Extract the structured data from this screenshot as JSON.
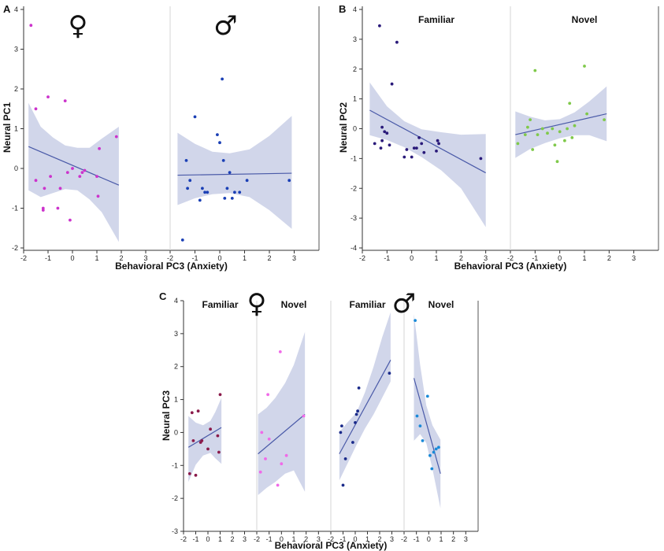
{
  "chart_data": [
    {
      "id": "A",
      "type": "scatter",
      "panel_letter": "A",
      "xlabel": "Behavioral PC3 (Anxiety)",
      "ylabel": "Neural PC1",
      "ylim": [
        -2,
        4
      ],
      "yticks": [
        "-2",
        "-1",
        "0",
        "1",
        "2",
        "3",
        "4"
      ],
      "facets": [
        {
          "label": "♀",
          "symbol": true,
          "xlim": [
            -2,
            4
          ],
          "xticks": [
            "-2",
            "-1",
            "0",
            "1",
            "2",
            "3"
          ],
          "color": "#cc33cc",
          "points": [
            [
              -1.7,
              3.6
            ],
            [
              -1.5,
              1.5
            ],
            [
              -1.5,
              -0.3
            ],
            [
              -1.2,
              -1.05
            ],
            [
              -1.2,
              -1.0
            ],
            [
              -1.15,
              -0.5
            ],
            [
              -1.0,
              1.8
            ],
            [
              -0.9,
              -0.2
            ],
            [
              -0.6,
              -1.0
            ],
            [
              -0.5,
              -0.5
            ],
            [
              -0.3,
              1.7
            ],
            [
              -0.2,
              -0.1
            ],
            [
              -0.1,
              -1.3
            ],
            [
              0.0,
              0.0
            ],
            [
              0.3,
              -0.2
            ],
            [
              0.4,
              -0.1
            ],
            [
              0.5,
              -0.05
            ],
            [
              1.0,
              -0.2
            ],
            [
              1.05,
              -0.7
            ],
            [
              1.1,
              0.5
            ],
            [
              1.8,
              0.8
            ]
          ],
          "fit": {
            "x": [
              -1.8,
              1.9
            ],
            "y": [
              0.55,
              -0.42
            ]
          },
          "band": {
            "x": [
              -1.8,
              -1.3,
              -0.8,
              -0.3,
              0.2,
              0.7,
              1.2,
              1.9
            ],
            "upper": [
              1.65,
              1.05,
              0.78,
              0.58,
              0.52,
              0.52,
              0.75,
              1.05
            ],
            "lower": [
              -0.55,
              -0.72,
              -0.62,
              -0.52,
              -0.55,
              -0.78,
              -1.1,
              -1.85
            ]
          }
        },
        {
          "label": "♂",
          "symbol": true,
          "xlim": [
            -2,
            4
          ],
          "xticks": [
            "-2",
            "-1",
            "0",
            "1",
            "2",
            "3"
          ],
          "color": "#1a3fb5",
          "points": [
            [
              -1.5,
              -1.8
            ],
            [
              -1.35,
              0.2
            ],
            [
              -1.3,
              -0.5
            ],
            [
              -1.2,
              -0.3
            ],
            [
              -1.0,
              1.3
            ],
            [
              -0.8,
              -0.8
            ],
            [
              -0.7,
              -0.5
            ],
            [
              -0.6,
              -0.6
            ],
            [
              -0.5,
              -0.6
            ],
            [
              -0.1,
              0.85
            ],
            [
              0.0,
              0.65
            ],
            [
              0.1,
              2.25
            ],
            [
              0.15,
              0.2
            ],
            [
              0.2,
              -0.75
            ],
            [
              0.3,
              -0.5
            ],
            [
              0.4,
              -0.1
            ],
            [
              0.5,
              -0.75
            ],
            [
              0.6,
              -0.6
            ],
            [
              0.8,
              -0.6
            ],
            [
              1.1,
              -0.3
            ],
            [
              2.8,
              -0.3
            ]
          ],
          "fit": {
            "x": [
              -1.7,
              2.9
            ],
            "y": [
              -0.17,
              -0.12
            ]
          },
          "band": {
            "x": [
              -1.7,
              -1.0,
              -0.3,
              0.4,
              1.2,
              2.0,
              2.9
            ],
            "upper": [
              0.9,
              0.62,
              0.42,
              0.38,
              0.48,
              0.82,
              1.32
            ],
            "lower": [
              -0.92,
              -0.75,
              -0.65,
              -0.62,
              -0.72,
              -1.05,
              -1.52
            ]
          }
        }
      ]
    },
    {
      "id": "B",
      "type": "scatter",
      "panel_letter": "B",
      "xlabel": "Behavioral PC3 (Anxiety)",
      "ylabel": "Neural PC2",
      "ylim": [
        -4,
        4
      ],
      "yticks": [
        "-4",
        "-3",
        "-2",
        "-1",
        "0",
        "1",
        "2",
        "3",
        "4"
      ],
      "facets": [
        {
          "label": "Familiar",
          "symbol": false,
          "xlim": [
            -2,
            4
          ],
          "xticks": [
            "-2",
            "-1",
            "0",
            "1",
            "2",
            "3"
          ],
          "color": "#2a1a7a",
          "points": [
            [
              -1.5,
              -0.5
            ],
            [
              -1.3,
              3.45
            ],
            [
              -1.25,
              -0.65
            ],
            [
              -1.2,
              -0.4
            ],
            [
              -1.2,
              0.05
            ],
            [
              -1.1,
              -0.1
            ],
            [
              -1.0,
              -0.15
            ],
            [
              -0.9,
              -0.55
            ],
            [
              -0.8,
              1.5
            ],
            [
              -0.6,
              2.9
            ],
            [
              -0.3,
              -0.95
            ],
            [
              -0.2,
              -0.7
            ],
            [
              0.0,
              -0.95
            ],
            [
              0.1,
              -0.65
            ],
            [
              0.2,
              -0.65
            ],
            [
              0.3,
              -0.3
            ],
            [
              0.4,
              -0.5
            ],
            [
              0.5,
              -0.8
            ],
            [
              1.0,
              -0.75
            ],
            [
              1.05,
              -0.4
            ],
            [
              1.1,
              -0.5
            ],
            [
              2.8,
              -1.0
            ]
          ],
          "fit": {
            "x": [
              -1.7,
              3.0
            ],
            "y": [
              0.62,
              -1.48
            ]
          },
          "band": {
            "x": [
              -1.7,
              -1.0,
              -0.3,
              0.4,
              1.2,
              2.0,
              3.0
            ],
            "upper": [
              1.55,
              0.75,
              0.25,
              -0.02,
              -0.12,
              -0.2,
              -0.18
            ],
            "lower": [
              -0.22,
              -0.38,
              -0.62,
              -0.95,
              -1.4,
              -2.0,
              -3.3
            ]
          }
        },
        {
          "label": "Novel",
          "symbol": false,
          "xlim": [
            -2,
            4
          ],
          "xticks": [
            "-2",
            "-1",
            "0",
            "1",
            "2",
            "3"
          ],
          "color": "#7fc94a",
          "points": [
            [
              -1.7,
              -0.5
            ],
            [
              -1.4,
              -0.2
            ],
            [
              -1.3,
              0.05
            ],
            [
              -1.2,
              0.3
            ],
            [
              -1.1,
              -0.7
            ],
            [
              -1.0,
              1.95
            ],
            [
              -0.9,
              -0.2
            ],
            [
              -0.7,
              0.0
            ],
            [
              -0.5,
              -0.15
            ],
            [
              -0.3,
              0.0
            ],
            [
              -0.2,
              -0.55
            ],
            [
              -0.1,
              -1.1
            ],
            [
              0.0,
              -0.1
            ],
            [
              0.2,
              -0.4
            ],
            [
              0.3,
              0.0
            ],
            [
              0.4,
              0.85
            ],
            [
              0.5,
              -0.3
            ],
            [
              0.6,
              0.1
            ],
            [
              1.0,
              2.1
            ],
            [
              1.1,
              0.5
            ],
            [
              1.8,
              0.3
            ]
          ],
          "fit": {
            "x": [
              -1.8,
              1.9
            ],
            "y": [
              -0.2,
              0.5
            ]
          },
          "band": {
            "x": [
              -1.8,
              -1.2,
              -0.6,
              0.0,
              0.6,
              1.2,
              1.9
            ],
            "upper": [
              0.58,
              0.4,
              0.28,
              0.32,
              0.55,
              0.92,
              1.42
            ],
            "lower": [
              -0.98,
              -0.68,
              -0.48,
              -0.32,
              -0.22,
              -0.22,
              -0.42
            ]
          }
        }
      ]
    },
    {
      "id": "C",
      "type": "scatter",
      "panel_letter": "C",
      "xlabel": "Behavioral PC3 (Anxiety)",
      "ylabel": "Neural PC3",
      "ylim": [
        -3,
        4
      ],
      "yticks": [
        "-3",
        "-2",
        "-1",
        "0",
        "1",
        "2",
        "3",
        "4"
      ],
      "symbols": [
        {
          "label": "♀",
          "between": [
            0,
            1
          ]
        },
        {
          "label": "♂",
          "between": [
            2,
            3
          ]
        }
      ],
      "facets": [
        {
          "label": "Familiar",
          "symbol": false,
          "xlim": [
            -2,
            4
          ],
          "xticks": [
            "-2",
            "-1",
            "0",
            "1",
            "2",
            "3"
          ],
          "color": "#8a1a4a",
          "points": [
            [
              -1.5,
              -1.25
            ],
            [
              -1.3,
              0.6
            ],
            [
              -1.2,
              -0.25
            ],
            [
              -1.0,
              -1.3
            ],
            [
              -0.8,
              0.65
            ],
            [
              -0.6,
              -0.3
            ],
            [
              -0.5,
              -0.25
            ],
            [
              0.0,
              -0.5
            ],
            [
              0.2,
              0.1
            ],
            [
              0.8,
              -0.1
            ],
            [
              0.9,
              -0.6
            ],
            [
              1.0,
              1.15
            ]
          ],
          "fit": {
            "x": [
              -1.6,
              1.1
            ],
            "y": [
              -0.45,
              0.15
            ]
          },
          "band": {
            "x": [
              -1.6,
              -1.0,
              -0.4,
              0.2,
              0.6,
              1.1
            ],
            "upper": [
              0.5,
              0.3,
              0.22,
              0.35,
              0.62,
              1.05
            ],
            "lower": [
              -1.5,
              -0.98,
              -0.7,
              -0.62,
              -0.78,
              -0.95
            ]
          }
        },
        {
          "label": "Novel",
          "symbol": false,
          "xlim": [
            -2,
            4
          ],
          "xticks": [
            "-2",
            "-1",
            "0",
            "1",
            "2",
            "3"
          ],
          "color": "#f06ae8",
          "points": [
            [
              -1.7,
              -1.2
            ],
            [
              -1.6,
              0.0
            ],
            [
              -1.3,
              -0.8
            ],
            [
              -1.1,
              1.15
            ],
            [
              -1.0,
              -0.2
            ],
            [
              -0.3,
              -1.6
            ],
            [
              -0.1,
              2.45
            ],
            [
              0.0,
              -0.95
            ],
            [
              0.4,
              -0.7
            ],
            [
              1.8,
              0.5
            ]
          ],
          "fit": {
            "x": [
              -1.9,
              1.9
            ],
            "y": [
              -0.65,
              0.55
            ]
          },
          "band": {
            "x": [
              -1.9,
              -1.2,
              -0.5,
              0.3,
              1.0,
              1.9
            ],
            "upper": [
              0.55,
              0.75,
              1.05,
              1.5,
              2.05,
              3.05
            ],
            "lower": [
              -1.9,
              -1.68,
              -1.5,
              -1.25,
              -1.15,
              -1.8
            ]
          }
        },
        {
          "label": "Familiar",
          "symbol": false,
          "xlim": [
            -2,
            4
          ],
          "xticks": [
            "-2",
            "-1",
            "0",
            "1",
            "2",
            "3"
          ],
          "color": "#1a2a8a",
          "points": [
            [
              -1.2,
              0.0
            ],
            [
              -1.1,
              0.2
            ],
            [
              -1.0,
              -1.6
            ],
            [
              -0.8,
              -0.8
            ],
            [
              -0.2,
              -0.3
            ],
            [
              0.0,
              0.3
            ],
            [
              0.1,
              0.55
            ],
            [
              0.2,
              0.65
            ],
            [
              0.3,
              1.35
            ],
            [
              2.8,
              1.8
            ]
          ],
          "fit": {
            "x": [
              -1.3,
              2.9
            ],
            "y": [
              -0.65,
              2.2
            ]
          },
          "band": {
            "x": [
              -1.3,
              -0.6,
              0.1,
              0.8,
              1.5,
              2.2,
              2.9
            ],
            "upper": [
              0.02,
              0.32,
              0.6,
              1.22,
              2.0,
              2.88,
              3.65
            ],
            "lower": [
              -1.45,
              -0.92,
              -0.38,
              0.12,
              0.55,
              1.05,
              1.55
            ]
          }
        },
        {
          "label": "Novel",
          "symbol": false,
          "xlim": [
            -2,
            4
          ],
          "xticks": [
            "-2",
            "-1",
            "0",
            "1",
            "2",
            "3"
          ],
          "color": "#1a8ad8",
          "points": [
            [
              -1.1,
              3.4
            ],
            [
              -0.95,
              0.5
            ],
            [
              -0.7,
              0.2
            ],
            [
              -0.5,
              -0.25
            ],
            [
              -0.1,
              1.1
            ],
            [
              0.1,
              -0.7
            ],
            [
              0.25,
              -1.1
            ],
            [
              0.4,
              -0.6
            ],
            [
              0.6,
              -0.5
            ],
            [
              0.8,
              -0.45
            ]
          ],
          "fit": {
            "x": [
              -1.2,
              0.95
            ],
            "y": [
              1.65,
              -1.25
            ]
          },
          "band": {
            "x": [
              -1.2,
              -0.7,
              -0.2,
              0.3,
              0.95
            ],
            "upper": [
              3.6,
              2.05,
              0.82,
              0.22,
              -0.22
            ],
            "lower": [
              -0.25,
              -0.05,
              -0.32,
              -1.1,
              -2.3
            ]
          }
        }
      ]
    }
  ]
}
